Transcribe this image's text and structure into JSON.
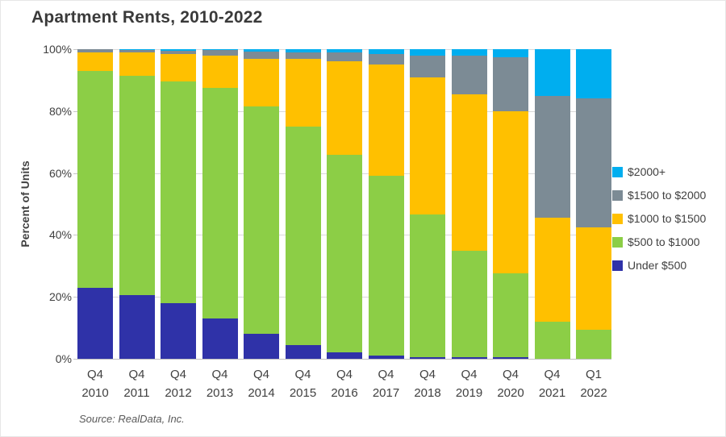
{
  "title": "Apartment Rents, 2010-2022",
  "source_note": "Source: RealData, Inc.",
  "colors": {
    "under_500": "#2F32A8",
    "500_to_1000": "#8CCE46",
    "1000_to_1500": "#FFC000",
    "1500_to_2000": "#7C8B95",
    "2000_plus": "#00AEEF",
    "gridline": "#D9D9D9",
    "axis_line": "#BFBFBF",
    "text": "#404040"
  },
  "chart_data": {
    "type": "bar",
    "stacked": true,
    "title": "Apartment Rents, 2010-2022",
    "xlabel": "",
    "ylabel": "Percent of Units",
    "ylim": [
      0,
      100
    ],
    "grid": true,
    "legend_position": "right",
    "y_ticks": [
      {
        "value": 0,
        "label": "0%"
      },
      {
        "value": 20,
        "label": "20%"
      },
      {
        "value": 40,
        "label": "40%"
      },
      {
        "value": 60,
        "label": "60%"
      },
      {
        "value": 80,
        "label": "80%"
      },
      {
        "value": 100,
        "label": "100%"
      }
    ],
    "categories": [
      {
        "line1": "Q4",
        "line2": "2010"
      },
      {
        "line1": "Q4",
        "line2": "2011"
      },
      {
        "line1": "Q4",
        "line2": "2012"
      },
      {
        "line1": "Q4",
        "line2": "2013"
      },
      {
        "line1": "Q4",
        "line2": "2014"
      },
      {
        "line1": "Q4",
        "line2": "2015"
      },
      {
        "line1": "Q4",
        "line2": "2016"
      },
      {
        "line1": "Q4",
        "line2": "2017"
      },
      {
        "line1": "Q4",
        "line2": "2018"
      },
      {
        "line1": "Q4",
        "line2": "2019"
      },
      {
        "line1": "Q4",
        "line2": "2020"
      },
      {
        "line1": "Q4",
        "line2": "2021"
      },
      {
        "line1": "Q1",
        "line2": "2022"
      }
    ],
    "series": [
      {
        "name": "Under $500",
        "color": "#2F32A8",
        "values": [
          23,
          20.5,
          18,
          13,
          8,
          4.5,
          2,
          1,
          0.5,
          0.5,
          0.5,
          0,
          0
        ]
      },
      {
        "name": "$500 to $1000",
        "color": "#8CCE46",
        "values": [
          70,
          71,
          71.5,
          74.5,
          73.5,
          70.5,
          64,
          58,
          46,
          34.5,
          27,
          12,
          9.5
        ]
      },
      {
        "name": "$1000 to $1500",
        "color": "#FFC000",
        "values": [
          6,
          7.5,
          9,
          10.5,
          15.5,
          22,
          30,
          36,
          44.5,
          50.5,
          52.5,
          33.5,
          33
        ]
      },
      {
        "name": "$1500 to $2000",
        "color": "#7C8B95",
        "values": [
          1,
          0.7,
          1,
          1.8,
          2.3,
          2,
          3,
          3.5,
          7,
          12.5,
          17.5,
          39.5,
          41.5
        ]
      },
      {
        "name": "$2000+",
        "color": "#00AEEF",
        "values": [
          0,
          0.3,
          0.5,
          0.2,
          0.7,
          1,
          1,
          1.5,
          2,
          2,
          2.5,
          15,
          16
        ]
      }
    ]
  }
}
